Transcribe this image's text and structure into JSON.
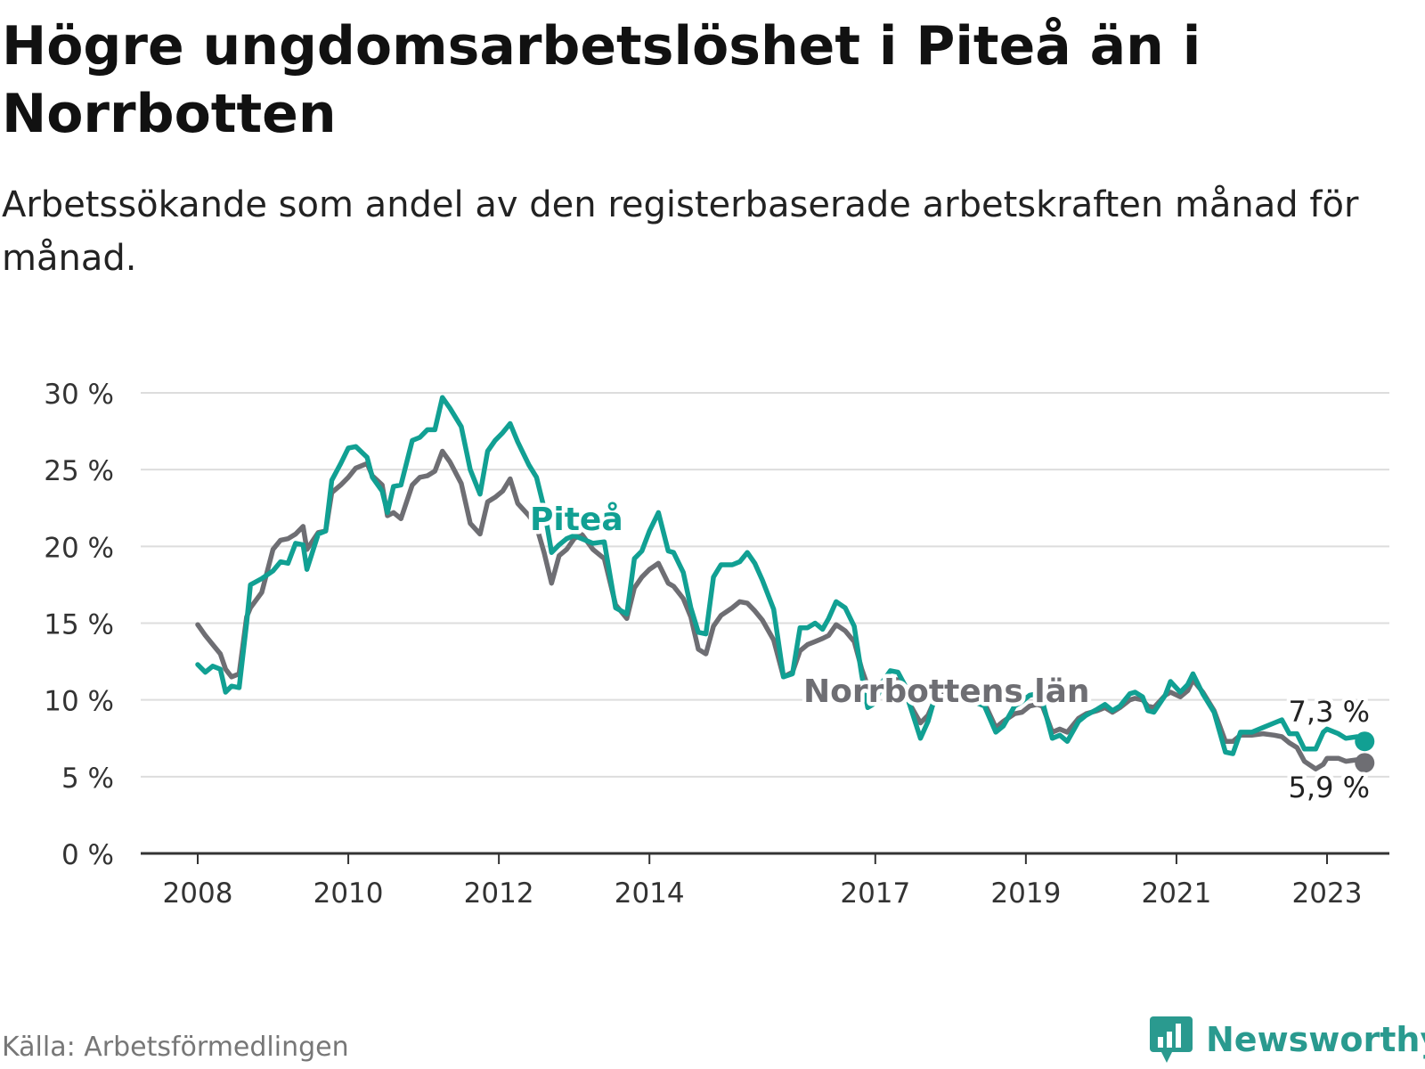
{
  "title": "Högre ungdomsarbetslöshet i Piteå än i Norrbotten",
  "subtitle": "Arbetssökande som andel av den registerbaserade arbetskraften månad för månad.",
  "source": "Källa: Arbetsförmedlingen",
  "brand": "Newsworthy",
  "colors": {
    "pitea": "#11a093",
    "norrbotten": "#6e6e73",
    "grid": "#dddddd",
    "axis": "#333333",
    "brand": "#2a9a8f"
  },
  "chart_data": {
    "type": "line",
    "title": "Högre ungdomsarbetslöshet i Piteå än i Norrbotten",
    "xlabel": "",
    "ylabel": "",
    "ylim": [
      0,
      30
    ],
    "xlim": [
      2007.75,
      2024.4
    ],
    "y_ticks": [
      0,
      5,
      10,
      15,
      20,
      25,
      30
    ],
    "y_tick_labels": [
      "0 %",
      "5 %",
      "10 %",
      "15 %",
      "20 %",
      "25 %",
      "30 %"
    ],
    "x_ticks": [
      2008,
      2010,
      2012,
      2014,
      2017,
      2019,
      2021,
      2023
    ],
    "x_tick_labels": [
      "2008",
      "2010",
      "2012",
      "2014",
      "2017",
      "2019",
      "2021",
      "2023"
    ],
    "grid": true,
    "series": [
      {
        "name": "Piteå",
        "label": "Piteå",
        "end_label": "7,3 %",
        "end_value": 7.3,
        "points": [
          [
            2008.0,
            12.3
          ],
          [
            2008.1,
            11.8
          ],
          [
            2008.2,
            12.2
          ],
          [
            2008.3,
            12.0
          ],
          [
            2008.37,
            10.5
          ],
          [
            2008.45,
            10.9
          ],
          [
            2008.55,
            10.8
          ],
          [
            2008.65,
            15.0
          ],
          [
            2008.7,
            17.5
          ],
          [
            2008.85,
            17.9
          ],
          [
            2009.0,
            18.4
          ],
          [
            2009.1,
            19.0
          ],
          [
            2009.2,
            18.9
          ],
          [
            2009.3,
            20.2
          ],
          [
            2009.4,
            20.1
          ],
          [
            2009.45,
            18.5
          ],
          [
            2009.6,
            20.8
          ],
          [
            2009.7,
            21.0
          ],
          [
            2009.78,
            24.3
          ],
          [
            2009.9,
            25.4
          ],
          [
            2010.0,
            26.4
          ],
          [
            2010.1,
            26.5
          ],
          [
            2010.25,
            25.8
          ],
          [
            2010.32,
            24.5
          ],
          [
            2010.45,
            23.6
          ],
          [
            2010.52,
            22.2
          ],
          [
            2010.6,
            23.9
          ],
          [
            2010.7,
            24.0
          ],
          [
            2010.85,
            26.9
          ],
          [
            2010.95,
            27.1
          ],
          [
            2011.05,
            27.6
          ],
          [
            2011.15,
            27.6
          ],
          [
            2011.25,
            29.7
          ],
          [
            2011.35,
            29.0
          ],
          [
            2011.5,
            27.8
          ],
          [
            2011.62,
            25.0
          ],
          [
            2011.75,
            23.4
          ],
          [
            2011.85,
            26.2
          ],
          [
            2011.95,
            26.9
          ],
          [
            2012.05,
            27.4
          ],
          [
            2012.15,
            28.0
          ],
          [
            2012.25,
            26.8
          ],
          [
            2012.4,
            25.3
          ],
          [
            2012.5,
            24.5
          ],
          [
            2012.6,
            22.5
          ],
          [
            2012.7,
            19.6
          ],
          [
            2012.8,
            20.1
          ],
          [
            2012.9,
            20.5
          ],
          [
            2013.0,
            20.7
          ],
          [
            2013.1,
            20.5
          ],
          [
            2013.25,
            20.2
          ],
          [
            2013.4,
            20.3
          ],
          [
            2013.55,
            16.0
          ],
          [
            2013.7,
            15.6
          ],
          [
            2013.8,
            19.2
          ],
          [
            2013.9,
            19.7
          ],
          [
            2014.0,
            21.0
          ],
          [
            2014.12,
            22.2
          ],
          [
            2014.25,
            19.7
          ],
          [
            2014.32,
            19.6
          ],
          [
            2014.45,
            18.3
          ],
          [
            2014.55,
            16.0
          ],
          [
            2014.65,
            14.4
          ],
          [
            2014.75,
            14.3
          ],
          [
            2014.85,
            18.0
          ],
          [
            2014.95,
            18.8
          ],
          [
            2015.1,
            18.8
          ],
          [
            2015.2,
            19.0
          ],
          [
            2015.3,
            19.6
          ],
          [
            2015.4,
            18.9
          ],
          [
            2015.5,
            17.8
          ],
          [
            2015.65,
            15.9
          ],
          [
            2015.78,
            11.5
          ],
          [
            2015.9,
            11.7
          ],
          [
            2016.0,
            14.7
          ],
          [
            2016.1,
            14.7
          ],
          [
            2016.2,
            15.0
          ],
          [
            2016.3,
            14.6
          ],
          [
            2016.38,
            15.3
          ],
          [
            2016.48,
            16.4
          ],
          [
            2016.6,
            16.0
          ],
          [
            2016.72,
            14.8
          ],
          [
            2016.82,
            11.6
          ],
          [
            2016.9,
            9.5
          ],
          [
            2017.0,
            9.8
          ],
          [
            2017.1,
            11.2
          ],
          [
            2017.2,
            11.9
          ],
          [
            2017.3,
            11.8
          ],
          [
            2017.4,
            10.9
          ],
          [
            2017.45,
            9.8
          ],
          [
            2017.6,
            7.5
          ],
          [
            2017.7,
            8.6
          ],
          [
            2017.8,
            10.3
          ],
          [
            2017.9,
            11.0
          ],
          [
            2018.0,
            10.7
          ],
          [
            2018.15,
            10.4
          ],
          [
            2018.3,
            9.9
          ],
          [
            2018.45,
            9.6
          ],
          [
            2018.6,
            7.9
          ],
          [
            2018.7,
            8.3
          ],
          [
            2018.85,
            9.6
          ],
          [
            2018.95,
            9.9
          ],
          [
            2019.05,
            10.3
          ],
          [
            2019.15,
            10.4
          ],
          [
            2019.22,
            9.9
          ],
          [
            2019.35,
            7.5
          ],
          [
            2019.45,
            7.7
          ],
          [
            2019.55,
            7.3
          ],
          [
            2019.7,
            8.6
          ],
          [
            2019.8,
            9.0
          ],
          [
            2019.95,
            9.4
          ],
          [
            2020.05,
            9.7
          ],
          [
            2020.15,
            9.3
          ],
          [
            2020.25,
            9.6
          ],
          [
            2020.38,
            10.4
          ],
          [
            2020.45,
            10.5
          ],
          [
            2020.55,
            10.2
          ],
          [
            2020.62,
            9.3
          ],
          [
            2020.7,
            9.2
          ],
          [
            2020.85,
            10.3
          ],
          [
            2020.92,
            11.2
          ],
          [
            2021.05,
            10.5
          ],
          [
            2021.15,
            11.0
          ],
          [
            2021.22,
            11.7
          ],
          [
            2021.35,
            10.4
          ],
          [
            2021.5,
            9.2
          ],
          [
            2021.65,
            6.6
          ],
          [
            2021.75,
            6.5
          ],
          [
            2021.85,
            7.9
          ],
          [
            2022.0,
            7.9
          ],
          [
            2022.15,
            8.2
          ],
          [
            2022.3,
            8.5
          ],
          [
            2022.4,
            8.7
          ],
          [
            2022.5,
            7.8
          ],
          [
            2022.6,
            7.8
          ],
          [
            2022.7,
            6.8
          ],
          [
            2022.85,
            6.8
          ],
          [
            2022.95,
            7.9
          ],
          [
            2023.0,
            8.1
          ],
          [
            2023.15,
            7.8
          ],
          [
            2023.25,
            7.5
          ],
          [
            2023.4,
            7.6
          ],
          [
            2023.5,
            7.3
          ]
        ]
      },
      {
        "name": "Norrbottens län",
        "label": "Norrbottens län",
        "end_label": "5,9 %",
        "end_value": 5.9,
        "points": [
          [
            2008.0,
            14.9
          ],
          [
            2008.1,
            14.2
          ],
          [
            2008.2,
            13.6
          ],
          [
            2008.3,
            13.0
          ],
          [
            2008.37,
            12.0
          ],
          [
            2008.45,
            11.5
          ],
          [
            2008.55,
            11.7
          ],
          [
            2008.65,
            15.4
          ],
          [
            2008.7,
            16.0
          ],
          [
            2008.85,
            17.0
          ],
          [
            2009.0,
            19.8
          ],
          [
            2009.1,
            20.4
          ],
          [
            2009.2,
            20.5
          ],
          [
            2009.3,
            20.8
          ],
          [
            2009.4,
            21.3
          ],
          [
            2009.45,
            19.8
          ],
          [
            2009.6,
            20.9
          ],
          [
            2009.7,
            21.0
          ],
          [
            2009.78,
            23.5
          ],
          [
            2009.9,
            24.0
          ],
          [
            2010.0,
            24.5
          ],
          [
            2010.1,
            25.1
          ],
          [
            2010.25,
            25.4
          ],
          [
            2010.32,
            24.6
          ],
          [
            2010.45,
            24.0
          ],
          [
            2010.52,
            22.0
          ],
          [
            2010.6,
            22.2
          ],
          [
            2010.7,
            21.8
          ],
          [
            2010.85,
            24.0
          ],
          [
            2010.95,
            24.5
          ],
          [
            2011.05,
            24.6
          ],
          [
            2011.15,
            24.9
          ],
          [
            2011.25,
            26.2
          ],
          [
            2011.35,
            25.5
          ],
          [
            2011.5,
            24.1
          ],
          [
            2011.62,
            21.5
          ],
          [
            2011.75,
            20.8
          ],
          [
            2011.85,
            22.9
          ],
          [
            2011.95,
            23.2
          ],
          [
            2012.05,
            23.6
          ],
          [
            2012.15,
            24.4
          ],
          [
            2012.25,
            22.8
          ],
          [
            2012.4,
            22.0
          ],
          [
            2012.5,
            21.3
          ],
          [
            2012.6,
            19.6
          ],
          [
            2012.7,
            17.6
          ],
          [
            2012.8,
            19.4
          ],
          [
            2012.9,
            19.8
          ],
          [
            2013.0,
            20.5
          ],
          [
            2013.1,
            20.8
          ],
          [
            2013.25,
            19.8
          ],
          [
            2013.4,
            19.2
          ],
          [
            2013.55,
            16.2
          ],
          [
            2013.7,
            15.3
          ],
          [
            2013.8,
            17.3
          ],
          [
            2013.9,
            18.0
          ],
          [
            2014.0,
            18.5
          ],
          [
            2014.12,
            18.9
          ],
          [
            2014.25,
            17.6
          ],
          [
            2014.32,
            17.4
          ],
          [
            2014.45,
            16.6
          ],
          [
            2014.55,
            15.4
          ],
          [
            2014.65,
            13.3
          ],
          [
            2014.75,
            13.0
          ],
          [
            2014.85,
            14.8
          ],
          [
            2014.95,
            15.5
          ],
          [
            2015.1,
            16.0
          ],
          [
            2015.2,
            16.4
          ],
          [
            2015.3,
            16.3
          ],
          [
            2015.4,
            15.8
          ],
          [
            2015.5,
            15.2
          ],
          [
            2015.65,
            13.9
          ],
          [
            2015.78,
            11.5
          ],
          [
            2015.9,
            11.8
          ],
          [
            2016.0,
            13.2
          ],
          [
            2016.1,
            13.6
          ],
          [
            2016.2,
            13.8
          ],
          [
            2016.3,
            14.0
          ],
          [
            2016.38,
            14.2
          ],
          [
            2016.48,
            14.9
          ],
          [
            2016.6,
            14.5
          ],
          [
            2016.72,
            13.8
          ],
          [
            2016.82,
            12.0
          ],
          [
            2016.9,
            10.9
          ],
          [
            2017.0,
            10.9
          ],
          [
            2017.1,
            11.2
          ],
          [
            2017.2,
            11.4
          ],
          [
            2017.3,
            11.3
          ],
          [
            2017.4,
            10.6
          ],
          [
            2017.45,
            9.8
          ],
          [
            2017.6,
            8.5
          ],
          [
            2017.7,
            9.0
          ],
          [
            2017.8,
            10.1
          ],
          [
            2017.9,
            10.6
          ],
          [
            2018.0,
            10.4
          ],
          [
            2018.15,
            10.2
          ],
          [
            2018.3,
            9.9
          ],
          [
            2018.45,
            9.8
          ],
          [
            2018.6,
            8.2
          ],
          [
            2018.7,
            8.6
          ],
          [
            2018.85,
            9.1
          ],
          [
            2018.95,
            9.2
          ],
          [
            2019.05,
            9.6
          ],
          [
            2019.15,
            9.7
          ],
          [
            2019.22,
            9.6
          ],
          [
            2019.35,
            7.9
          ],
          [
            2019.45,
            8.1
          ],
          [
            2019.55,
            7.9
          ],
          [
            2019.7,
            8.8
          ],
          [
            2019.8,
            9.1
          ],
          [
            2019.95,
            9.3
          ],
          [
            2020.05,
            9.5
          ],
          [
            2020.15,
            9.2
          ],
          [
            2020.25,
            9.5
          ],
          [
            2020.38,
            10.0
          ],
          [
            2020.45,
            10.1
          ],
          [
            2020.55,
            10.0
          ],
          [
            2020.62,
            9.6
          ],
          [
            2020.7,
            9.5
          ],
          [
            2020.85,
            10.3
          ],
          [
            2020.92,
            10.5
          ],
          [
            2021.05,
            10.2
          ],
          [
            2021.15,
            10.6
          ],
          [
            2021.22,
            11.3
          ],
          [
            2021.35,
            10.5
          ],
          [
            2021.5,
            9.3
          ],
          [
            2021.65,
            7.3
          ],
          [
            2021.75,
            7.3
          ],
          [
            2021.85,
            7.7
          ],
          [
            2022.0,
            7.7
          ],
          [
            2022.15,
            7.8
          ],
          [
            2022.3,
            7.7
          ],
          [
            2022.4,
            7.6
          ],
          [
            2022.5,
            7.2
          ],
          [
            2022.6,
            6.9
          ],
          [
            2022.7,
            6.0
          ],
          [
            2022.85,
            5.5
          ],
          [
            2022.95,
            5.8
          ],
          [
            2023.0,
            6.2
          ],
          [
            2023.15,
            6.2
          ],
          [
            2023.25,
            6.0
          ],
          [
            2023.4,
            6.1
          ],
          [
            2023.5,
            5.9
          ]
        ]
      }
    ]
  }
}
